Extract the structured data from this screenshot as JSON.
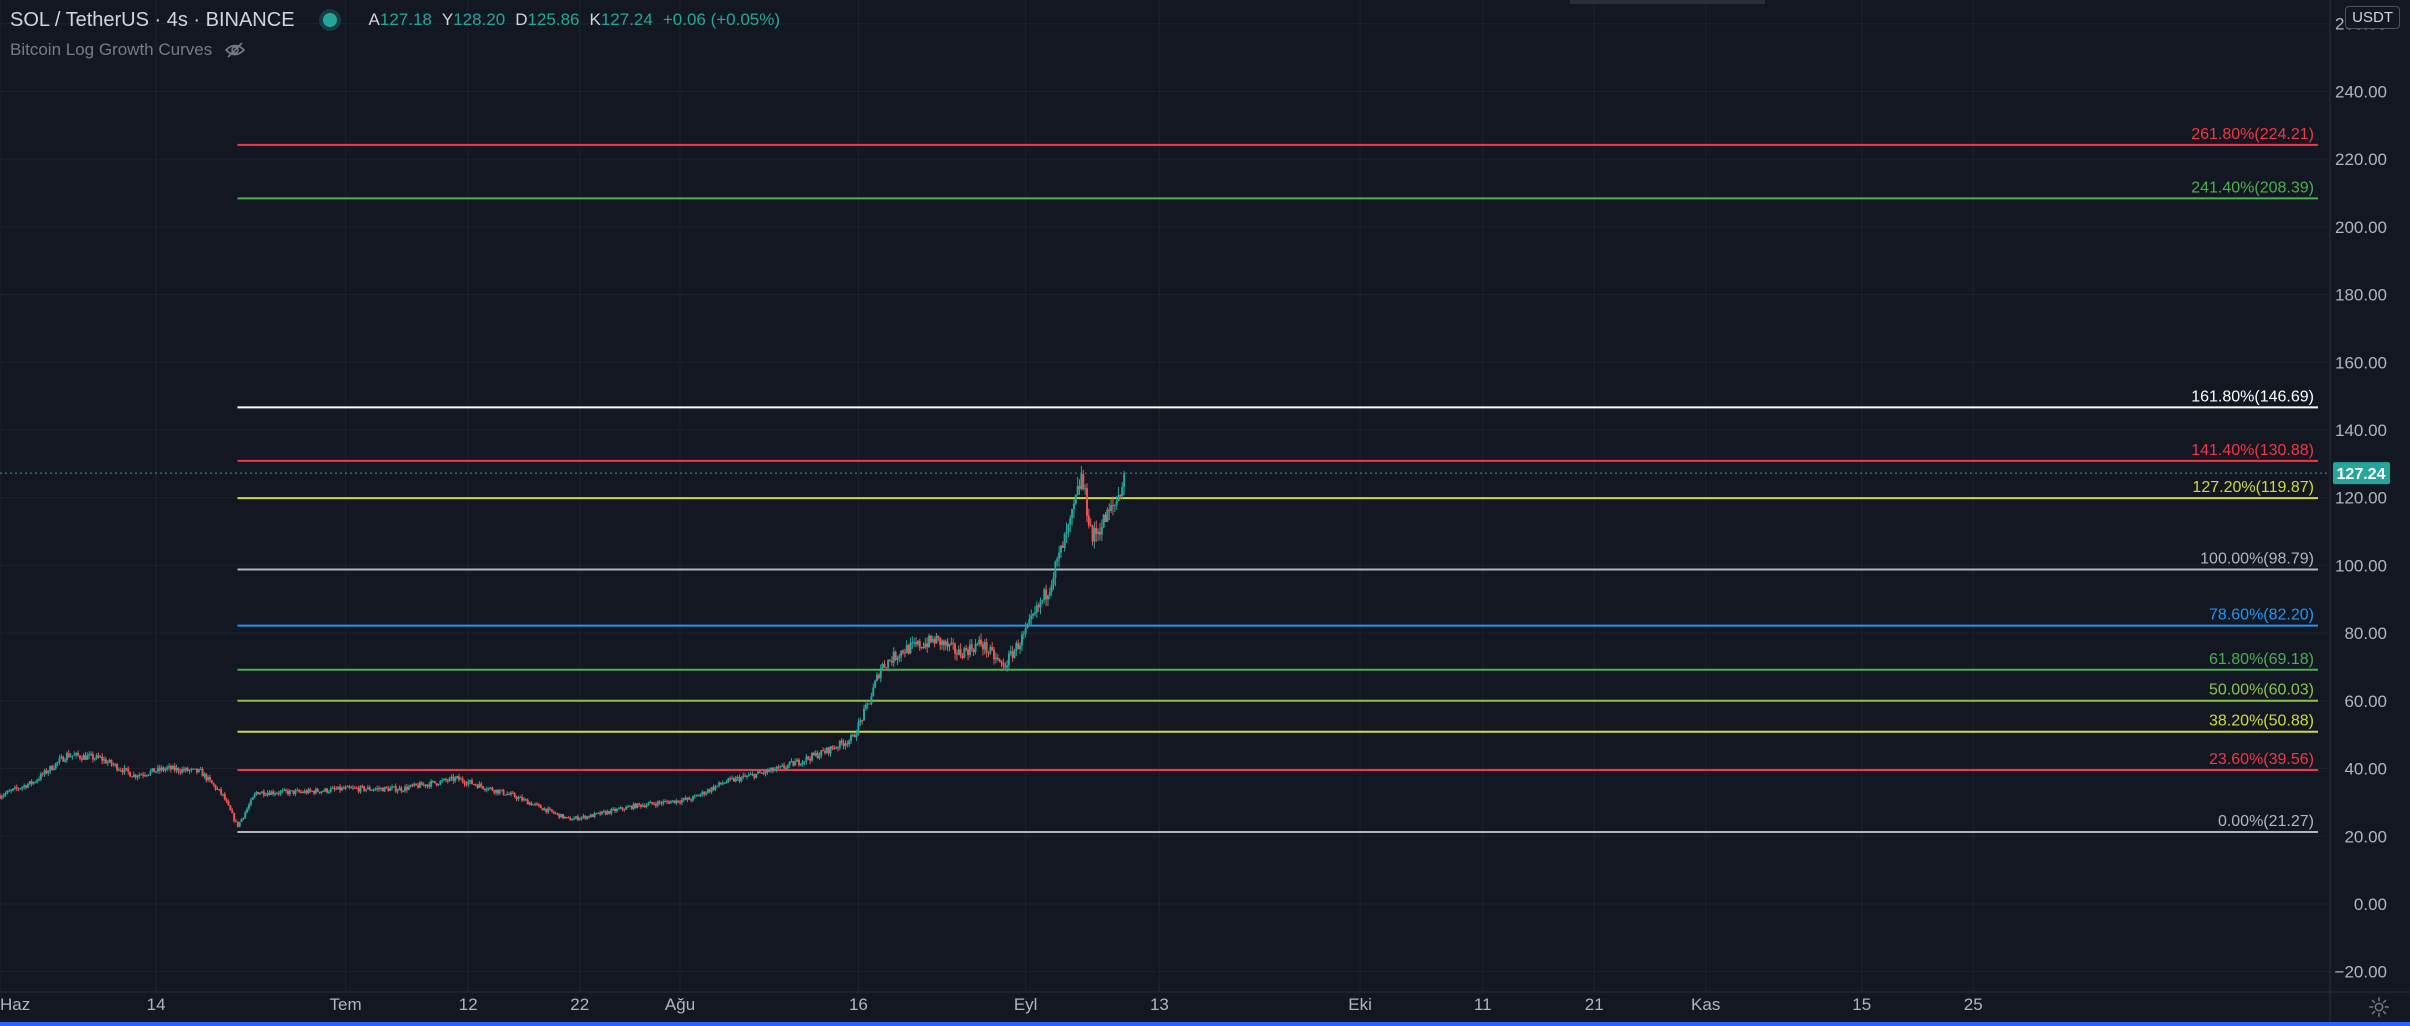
{
  "symbol": {
    "title": "SOL / TetherUS · 4s · BINANCE",
    "open_label": "A",
    "open": "127.18",
    "high_label": "Y",
    "high": "128.20",
    "low_label": "D",
    "low": "125.86",
    "close_label": "K",
    "close": "127.24",
    "change": "+0.06 (+0.05%)"
  },
  "indicator": {
    "name": "Bitcoin Log Growth Curves",
    "icon": "eye-crossed-icon"
  },
  "axis": {
    "currency": "USDT",
    "settings_icon": "gear-icon"
  },
  "colors": {
    "background": "#131722",
    "grid": "#1e222d",
    "up": "#26a69a",
    "down": "#ef5350",
    "price_badge": "#26a69a",
    "bottom_bar": "#2962ff"
  },
  "chart_data": {
    "type": "candlestick",
    "y_ticks": [
      -20,
      0,
      20,
      40,
      60,
      80,
      100,
      120,
      140,
      160,
      180,
      200,
      220,
      240,
      260
    ],
    "y_tick_labels": [
      "−20.00",
      "0.00",
      "20.00",
      "40.00",
      "60.00",
      "80.00",
      "100.00",
      "120.00",
      "140.00",
      "160.00",
      "180.00",
      "200.00",
      "220.00",
      "240.00",
      "260.00"
    ],
    "ylim": [
      -26,
      267
    ],
    "x_labels": [
      "Haz",
      "14",
      "Tem",
      "12",
      "22",
      "Ağu",
      "16",
      "Eyl",
      "13",
      "Eki",
      "11",
      "21",
      "Kas",
      "15",
      "25"
    ],
    "x_label_days": [
      0,
      14,
      31,
      42,
      52,
      61,
      77,
      92,
      104,
      122,
      133,
      143,
      153,
      167,
      177
    ],
    "x_range_days": [
      0,
      209
    ],
    "current_price": 127.24,
    "current_price_label": "127.24",
    "fib_levels": [
      {
        "label": "261.80%(224.21)",
        "value": 224.21,
        "color": "#f23645"
      },
      {
        "label": "241.40%(208.39)",
        "value": 208.39,
        "color": "#4caf50"
      },
      {
        "label": "161.80%(146.69)",
        "value": 146.69,
        "color": "#ffffff"
      },
      {
        "label": "141.40%(130.88)",
        "value": 130.88,
        "color": "#f23645"
      },
      {
        "label": "127.20%(119.87)",
        "value": 119.87,
        "color": "#cddc39"
      },
      {
        "label": "100.00%(98.79)",
        "value": 98.79,
        "color": "#b2b5be"
      },
      {
        "label": "78.60%(82.20)",
        "value": 82.2,
        "color": "#2196f3"
      },
      {
        "label": "61.80%(69.18)",
        "value": 69.18,
        "color": "#4caf50"
      },
      {
        "label": "50.00%(60.03)",
        "value": 60.03,
        "color": "#8bc34a"
      },
      {
        "label": "38.20%(50.88)",
        "value": 50.88,
        "color": "#cddc39"
      },
      {
        "label": "23.60%(39.56)",
        "value": 39.56,
        "color": "#f23645"
      },
      {
        "label": "0.00%(21.27)",
        "value": 21.27,
        "color": "#b2b5be"
      }
    ],
    "fib_start_day": 21.3,
    "price_path": [
      [
        0,
        32
      ],
      [
        3,
        36
      ],
      [
        6,
        44
      ],
      [
        9,
        43
      ],
      [
        12,
        38
      ],
      [
        15,
        40
      ],
      [
        18,
        39
      ],
      [
        20,
        32
      ],
      [
        21.3,
        23
      ],
      [
        23,
        33
      ],
      [
        27,
        33
      ],
      [
        31,
        34
      ],
      [
        36,
        34
      ],
      [
        41,
        37
      ],
      [
        46,
        32
      ],
      [
        51,
        25
      ],
      [
        53,
        26
      ],
      [
        57,
        29
      ],
      [
        62,
        31
      ],
      [
        65,
        36
      ],
      [
        70,
        40
      ],
      [
        74,
        45
      ],
      [
        76.5,
        49
      ],
      [
        78,
        60
      ],
      [
        79,
        70
      ],
      [
        81,
        75
      ],
      [
        84,
        78
      ],
      [
        86,
        74
      ],
      [
        88,
        77
      ],
      [
        90,
        70
      ],
      [
        92,
        80
      ],
      [
        94,
        93
      ],
      [
        96,
        112
      ],
      [
        97,
        126
      ],
      [
        98,
        108
      ],
      [
        100,
        118
      ],
      [
        101,
        127
      ]
    ]
  }
}
